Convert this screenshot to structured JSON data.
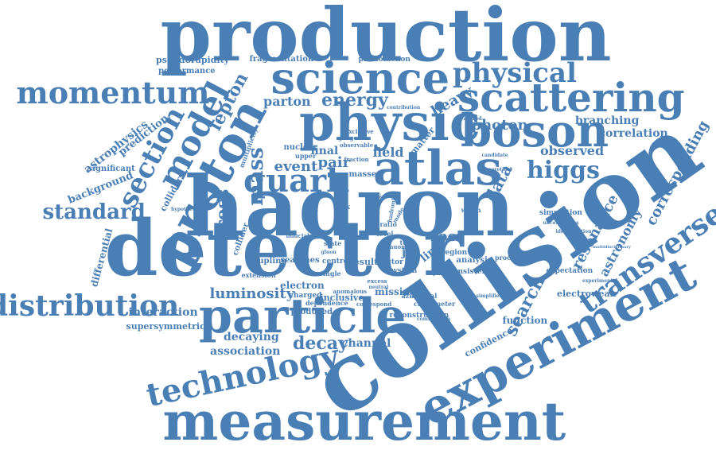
{
  "colors": {
    "word": "#4a7fb5",
    "background": "#ffffff"
  },
  "words": [
    "production",
    "science",
    "physical",
    "momentum",
    "scattering",
    "physic",
    "boson",
    "proton",
    "model",
    "section",
    "lepton",
    "hadron",
    "atlas",
    "quark",
    "detector",
    "collision",
    "experiment",
    "measurement",
    "technology",
    "particle",
    "distribution",
    "standard",
    "transverse",
    "higgs",
    "data",
    "energy",
    "parton",
    "heavy",
    "photon",
    "search",
    "resonance",
    "astronomy",
    "corresponding",
    "correlation",
    "branching",
    "observed",
    "mass",
    "cross",
    "event",
    "pair",
    "final",
    "field",
    "jet",
    "root",
    "limit",
    "decay",
    "channel",
    "luminosity",
    "interaction",
    "supersymmetric",
    "decaying",
    "association",
    "function",
    "confidence",
    "electroweak",
    "expectation",
    "simulation",
    "analysis",
    "result",
    "searches",
    "coupling",
    "electron",
    "charged",
    "missing",
    "inclusive",
    "produced",
    "extension",
    "fragmentation",
    "phenomenon",
    "pseudorapidity",
    "performance",
    "astrophysics",
    "prediction",
    "significant",
    "background",
    "colliders",
    "differential",
    "nuclear",
    "upper",
    "masse",
    "vector",
    "region",
    "system",
    "consistent",
    "centre",
    "collider",
    "multiplicity",
    "reconstruction",
    "calorimeter",
    "dependence",
    "ratio",
    "level",
    "single",
    "matter",
    "processes",
    "azimuthal",
    "measured",
    "gauge",
    "candidate",
    "theoretical",
    "uncertainties",
    "identification",
    "observable",
    "contribution",
    "hypothetical",
    "state",
    "dark",
    "fiducial",
    "square",
    "mode",
    "hadronic",
    "excess",
    "muon",
    "top",
    "gluon",
    "neutral",
    "width",
    "experimental",
    "multidisciplinary",
    "exclusive",
    "fraction",
    "anomalous",
    "simplified",
    "correspond",
    "combination"
  ]
}
